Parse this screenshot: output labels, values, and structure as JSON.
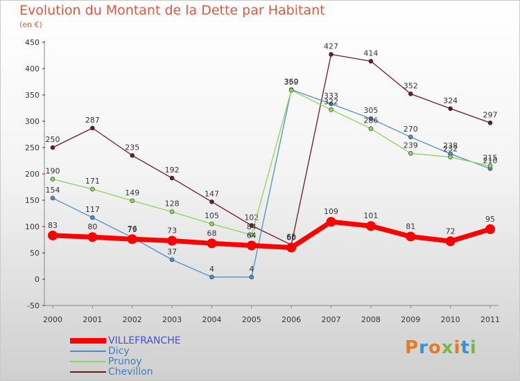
{
  "title": "Evolution du Montant de la Dette par Habitant",
  "subtitle": "(en €)",
  "logo": {
    "text": "Proxiti",
    "colors": [
      "#e87a24",
      "#3c8fd0",
      "#e87a24",
      "#7ab648",
      "#e87a24",
      "#3c8fd0",
      "#7ab648"
    ]
  },
  "chart_data": {
    "type": "line",
    "title": "Evolution du Montant de la Dette par Habitant",
    "ylabel": "(en €)",
    "x": [
      "2000",
      "2001",
      "2002",
      "2003",
      "2004",
      "2005",
      "2006",
      "2007",
      "2008",
      "2009",
      "2010",
      "2011"
    ],
    "ylim": [
      -50,
      450
    ],
    "yticks": [
      -50,
      0,
      50,
      100,
      150,
      200,
      250,
      300,
      350,
      400,
      450
    ],
    "grid": false,
    "legend_position": "bottom-left",
    "series": [
      {
        "name": "Chevillon",
        "color": "#6b1a22",
        "values": [
          250,
          287,
          235,
          192,
          147,
          102,
          65,
          427,
          414,
          352,
          324,
          297
        ]
      },
      {
        "name": "Dicy",
        "color": "#4a90c8",
        "values": [
          154,
          117,
          79,
          37,
          4,
          4,
          360,
          333,
          305,
          270,
          238,
          210
        ]
      },
      {
        "name": "Prunoy",
        "color": "#8dd45a",
        "values": [
          190,
          171,
          149,
          128,
          105,
          84,
          359,
          322,
          286,
          239,
          232,
          215
        ]
      },
      {
        "name": "VILLEFRANCHE",
        "color": "#ff0000",
        "values": [
          83,
          80,
          76,
          73,
          68,
          64,
          60,
          109,
          101,
          81,
          72,
          95
        ]
      }
    ],
    "legend": [
      {
        "name": "VILLEFRANCHE",
        "color": "#ff0000",
        "text_color": "#4a4ae0",
        "thick": true
      },
      {
        "name": "Dicy",
        "color": "#4a90c8",
        "text_color": "#3c7fc0",
        "thick": false
      },
      {
        "name": "Prunoy",
        "color": "#8dd45a",
        "text_color": "#3c7fc0",
        "thick": false
      },
      {
        "name": "Chevillon",
        "color": "#6b1a22",
        "text_color": "#3c7fc0",
        "thick": false
      }
    ]
  }
}
